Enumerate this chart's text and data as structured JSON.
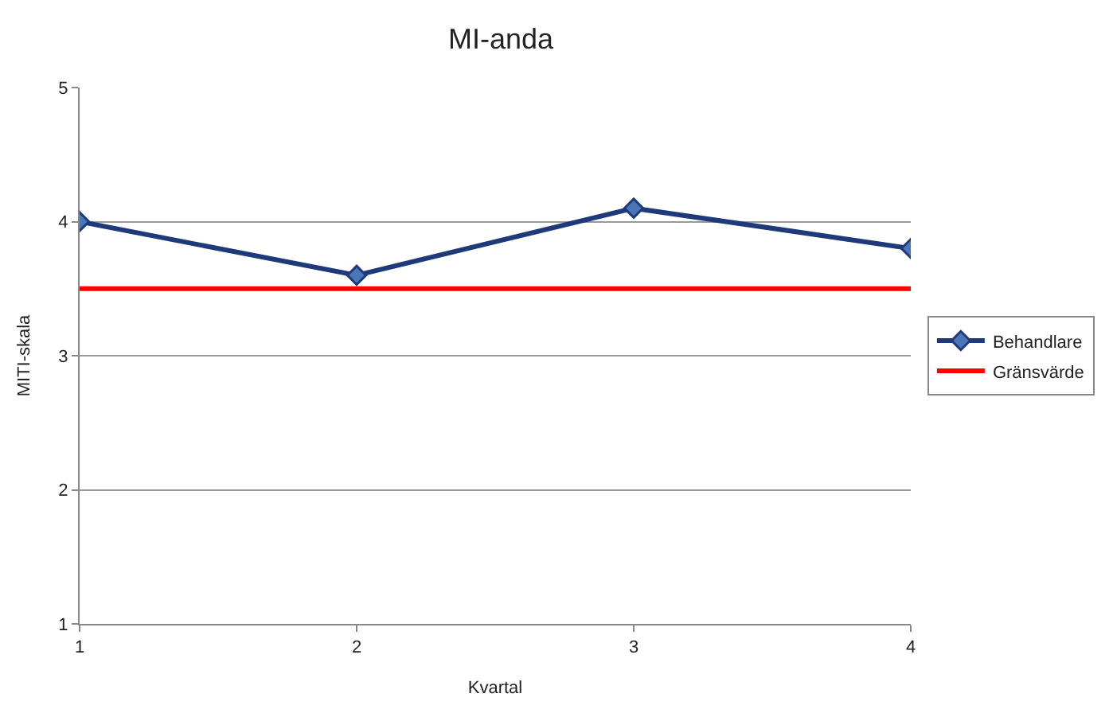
{
  "chart_data": {
    "type": "line",
    "title": "MI-anda",
    "xlabel": "Kvartal",
    "ylabel": "MITI-skala",
    "x": [
      1,
      2,
      3,
      4
    ],
    "xlim": [
      1,
      4
    ],
    "xticks": [
      1,
      2,
      3,
      4
    ],
    "ylim": [
      1,
      5
    ],
    "yticks": [
      1,
      2,
      3,
      4,
      5
    ],
    "grid": "y",
    "legend": "right",
    "line_style": "solid",
    "series": [
      {
        "name": "Behandlare",
        "color": "#1f3a7a",
        "values": [
          4.0,
          3.6,
          4.1,
          3.8
        ],
        "marker": "diamond"
      },
      {
        "name": "Gränsvärde",
        "color": "#ff0000",
        "values": [
          3.5,
          3.5,
          3.5,
          3.5
        ],
        "marker": "none"
      }
    ]
  }
}
